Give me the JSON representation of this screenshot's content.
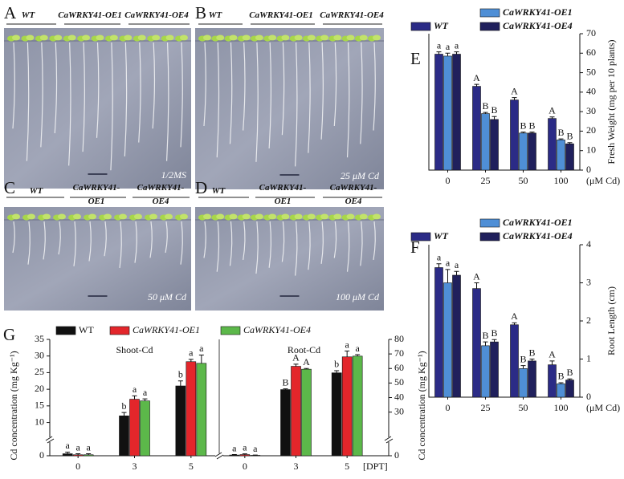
{
  "panels": [
    {
      "letter": "A",
      "genotypes": [
        "WT",
        "CaWRKY41-OE1",
        "CaWRKY41-OE4"
      ],
      "treatment": "1/2MS"
    },
    {
      "letter": "B",
      "genotypes": [
        "WT",
        "CaWRKY41-OE1",
        "CaWRKY41-OE4"
      ],
      "treatment": "25 μM Cd"
    },
    {
      "letter": "C",
      "genotypes": [
        "WT",
        "CaWRKY41-OE1",
        "CaWRKY41-OE4"
      ],
      "treatment": "50 μM Cd"
    },
    {
      "letter": "D",
      "genotypes": [
        "WT",
        "CaWRKY41-OE1",
        "CaWRKY41-OE4"
      ],
      "treatment": "100 μM Cd"
    }
  ],
  "chart_data": [
    {
      "type": "bar",
      "letter": "E",
      "ylabel": "Fresh Weight (mg per 10 plants)",
      "xlabel": "(μM Cd)",
      "categories": [
        "0",
        "25",
        "50",
        "100"
      ],
      "ylim": [
        0,
        70
      ],
      "yticks": [
        0,
        10,
        20,
        30,
        40,
        50,
        60,
        70
      ],
      "series": [
        {
          "name": "WT",
          "color": "#2b2b86",
          "values": [
            59.5,
            43,
            36,
            26.5
          ],
          "errors": [
            1.2,
            1,
            1.2,
            0.8
          ],
          "letters": [
            "a",
            "A",
            "A",
            "A"
          ]
        },
        {
          "name": "CaWRKY41-OE1",
          "color": "#4f8fd6",
          "values": [
            58.5,
            29,
            19,
            15.5
          ],
          "errors": [
            1.5,
            0.6,
            0.5,
            0.5
          ],
          "letters": [
            "a",
            "B",
            "B",
            "B"
          ]
        },
        {
          "name": "CaWRKY41-OE4",
          "color": "#20205c",
          "values": [
            59.5,
            26,
            19,
            13.5
          ],
          "errors": [
            1.2,
            1.5,
            0.5,
            0.6
          ],
          "letters": [
            "a",
            "B",
            "B",
            "B"
          ]
        }
      ]
    },
    {
      "type": "bar",
      "letter": "F",
      "ylabel": "Root Length (cm)",
      "xlabel": "(μM Cd)",
      "categories": [
        "0",
        "25",
        "50",
        "100"
      ],
      "ylim": [
        0,
        4
      ],
      "yticks": [
        0,
        1,
        2,
        3,
        4
      ],
      "series": [
        {
          "name": "WT",
          "color": "#2b2b86",
          "values": [
            3.4,
            2.85,
            1.9,
            0.85
          ],
          "errors": [
            0.1,
            0.15,
            0.05,
            0.1
          ],
          "letters": [
            "a",
            "A",
            "A",
            "A"
          ]
        },
        {
          "name": "CaWRKY41-OE1",
          "color": "#4f8fd6",
          "values": [
            3.0,
            1.35,
            0.75,
            0.35
          ],
          "errors": [
            0.35,
            0.1,
            0.08,
            0.03
          ],
          "letters": [
            "a",
            "B",
            "B",
            "B"
          ]
        },
        {
          "name": "CaWRKY41-OE4",
          "color": "#20205c",
          "values": [
            3.2,
            1.45,
            0.95,
            0.45
          ],
          "errors": [
            0.1,
            0.06,
            0.05,
            0.03
          ],
          "letters": [
            "a",
            "B",
            "B",
            "B"
          ]
        }
      ]
    },
    {
      "type": "bar",
      "letter": "G",
      "ylabel": "Cd concentration (mg Kg⁻¹)",
      "y2label": "Cd concentration (mg Kg⁻¹)",
      "xlabel": "[DPT]",
      "categories": [
        "0",
        "3",
        "5"
      ],
      "ylim": [
        0,
        35
      ],
      "yticks": [
        0,
        10,
        15,
        20,
        25,
        30,
        35
      ],
      "y2lim": [
        0,
        80
      ],
      "y2ticks": [
        0,
        30,
        40,
        50,
        60,
        70,
        80
      ],
      "axis_break": true,
      "series": [
        {
          "name": "WT",
          "color": "#111111"
        },
        {
          "name": "CaWRKY41-OE1",
          "color": "#e3262b"
        },
        {
          "name": "CaWRKY41-OE4",
          "color": "#5cb84a"
        }
      ],
      "groups": [
        {
          "label": "Shoot-Cd",
          "axis": "y",
          "values": [
            [
              0.6,
              12,
              21
            ],
            [
              0.3,
              17,
              28.3
            ],
            [
              0.3,
              16.5,
              27.8
            ]
          ],
          "errors": [
            [
              0.5,
              1,
              1.5
            ],
            [
              0.3,
              1,
              0.7
            ],
            [
              0.3,
              0.6,
              2.5
            ]
          ],
          "letters": [
            [
              "a",
              "b",
              "b"
            ],
            [
              "a",
              "a",
              "a"
            ],
            [
              "a",
              "a",
              "a"
            ]
          ]
        },
        {
          "label": "Root-Cd",
          "axis": "y2",
          "values": [
            [
              0.5,
              45.5,
              57
            ],
            [
              0.8,
              61.5,
              68
            ],
            [
              0.3,
              59.5,
              68.5
            ]
          ],
          "errors": [
            [
              0.3,
              0.5,
              1.5
            ],
            [
              0.5,
              1.5,
              4
            ],
            [
              0.2,
              0.5,
              1
            ]
          ],
          "letters": [
            [
              "a",
              "B",
              "b"
            ],
            [
              "a",
              "A",
              "a"
            ],
            [
              "a",
              "A",
              "a"
            ]
          ]
        }
      ]
    }
  ]
}
